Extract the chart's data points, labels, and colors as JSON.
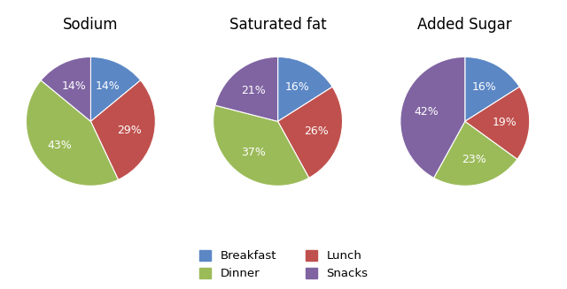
{
  "charts": [
    {
      "title": "Sodium",
      "values": [
        14,
        29,
        43,
        14
      ],
      "labels": [
        "14%",
        "29%",
        "43%",
        "14%"
      ],
      "order": [
        "Breakfast",
        "Lunch",
        "Dinner",
        "Snacks"
      ],
      "start_angle": 90
    },
    {
      "title": "Saturated fat",
      "values": [
        16,
        26,
        37,
        21
      ],
      "labels": [
        "16%",
        "26%",
        "37%",
        "21%"
      ],
      "order": [
        "Breakfast",
        "Lunch",
        "Dinner",
        "Snacks"
      ],
      "start_angle": 90
    },
    {
      "title": "Added Sugar",
      "values": [
        16,
        19,
        23,
        42
      ],
      "labels": [
        "16%",
        "19%",
        "23%",
        "42%"
      ],
      "order": [
        "Breakfast",
        "Lunch",
        "Dinner",
        "Snacks"
      ],
      "start_angle": 90
    }
  ],
  "colors": {
    "Breakfast": "#5B87C5",
    "Lunch": "#C0504D",
    "Dinner": "#9BBB59",
    "Snacks": "#8064A2"
  },
  "background_color": "#FFFFFF",
  "title_fontsize": 12,
  "label_fontsize": 9
}
